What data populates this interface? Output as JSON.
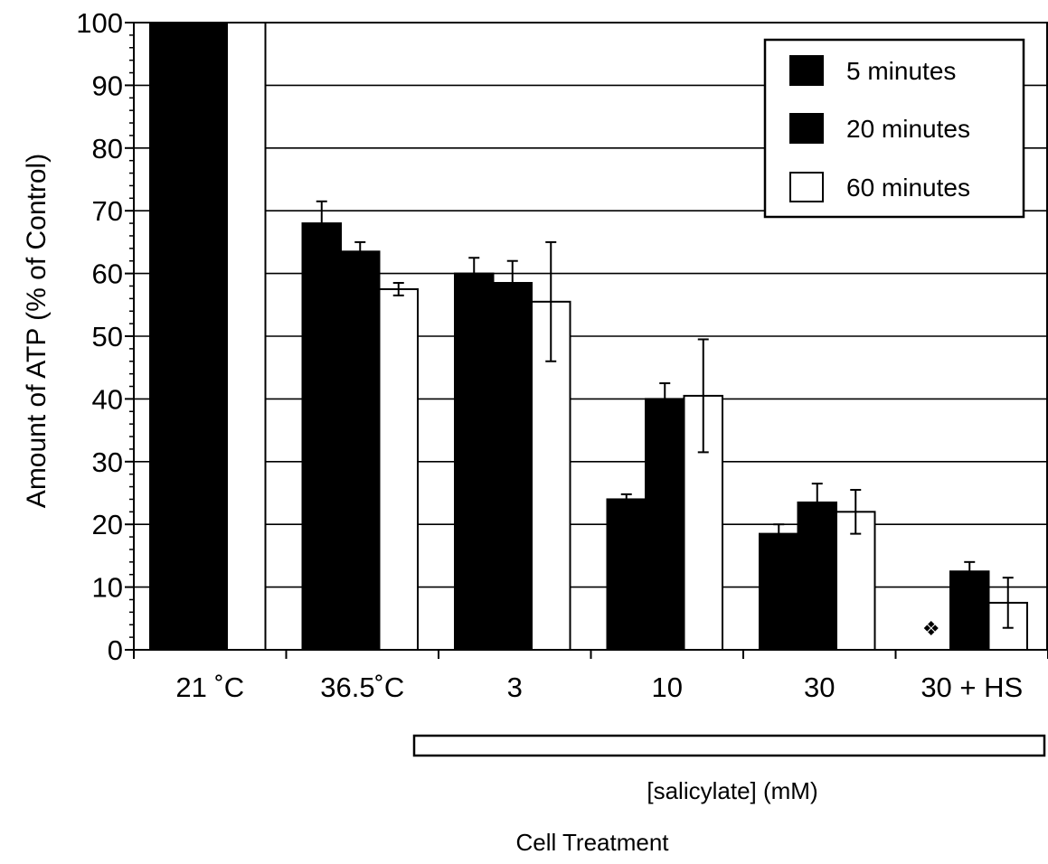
{
  "chart_data": {
    "type": "bar",
    "ylabel": "Amount of ATP (% of Control)",
    "xlabel": "Cell Treatment",
    "categories": [
      "21 ˚C",
      "36.5˚C",
      "3",
      "10",
      "30",
      "30 + HS"
    ],
    "ylim": [
      0,
      100
    ],
    "yticks": [
      0,
      10,
      20,
      30,
      40,
      50,
      60,
      70,
      80,
      90,
      100
    ],
    "grid": true,
    "legend_position": "top-right",
    "series": [
      {
        "name": "5 minutes",
        "color": "#000000",
        "values": [
          100,
          68,
          60,
          24,
          18.5,
          0
        ],
        "errors": [
          0,
          3.5,
          2.5,
          0.8,
          1.5,
          0
        ]
      },
      {
        "name": "20 minutes",
        "color": "#000000",
        "values": [
          100,
          63.5,
          58.5,
          40,
          23.5,
          12.5
        ],
        "errors": [
          0,
          1.5,
          3.5,
          2.5,
          3,
          1.5
        ]
      },
      {
        "name": "60 minutes",
        "color": "#ffffff",
        "values": [
          100,
          57.5,
          55.5,
          40.5,
          22,
          7.5
        ],
        "errors": [
          0,
          1,
          9.5,
          9,
          3.5,
          4
        ]
      }
    ],
    "annotations": [
      {
        "category": "30 + HS",
        "series": "5 minutes",
        "symbol": "❖"
      }
    ],
    "group_bracket": {
      "label": "[salicylate] (mM)",
      "spans_categories": [
        "3",
        "10",
        "30",
        "30 + HS"
      ]
    }
  }
}
